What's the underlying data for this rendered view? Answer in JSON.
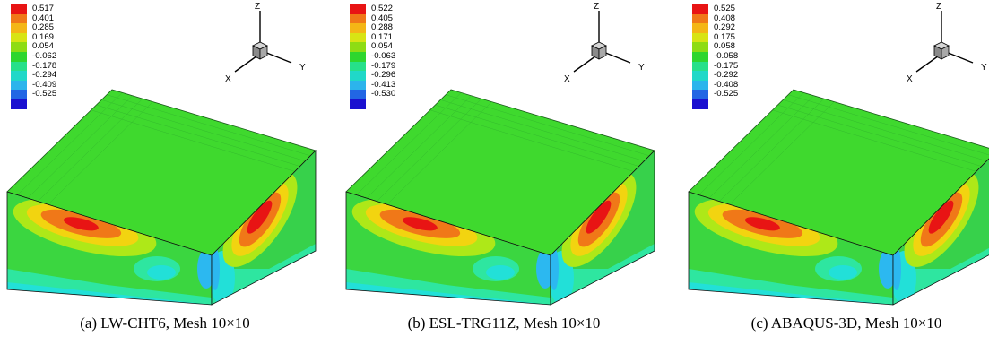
{
  "colors": {
    "top_face": "#3fd92e",
    "front_face": "#3bd640",
    "side_face": "#37d14b",
    "band_cyan_green": "#2ee6a0",
    "band_cyan": "#22e0d8",
    "band_light_blue": "#2cb8f0",
    "band_yellow_green": "#aee818",
    "band_yellow": "#f2d410",
    "band_orange": "#f07818",
    "band_red": "#e81414"
  },
  "legend_colors": [
    "#e81414",
    "#f07818",
    "#f4b616",
    "#d8e414",
    "#8edc14",
    "#2ed62e",
    "#26e08a",
    "#20d8c8",
    "#2cb4ec",
    "#2266e4",
    "#1a10d0"
  ],
  "axis_labels": {
    "z": "Z",
    "x": "X",
    "y": "Y"
  },
  "panels": [
    {
      "id": "a",
      "legend_values": [
        "0.517",
        "0.401",
        "0.285",
        "0.169",
        "0.054",
        "-0.062",
        "-0.178",
        "-0.294",
        "-0.409",
        "-0.525"
      ],
      "caption": "(a)  LW-CHT6, Mesh 10×10"
    },
    {
      "id": "b",
      "legend_values": [
        "0.522",
        "0.405",
        "0.288",
        "0.171",
        "0.054",
        "-0.063",
        "-0.179",
        "-0.296",
        "-0.413",
        "-0.530"
      ],
      "caption": "(b)  ESL-TRG11Z, Mesh 10×10"
    },
    {
      "id": "c",
      "legend_values": [
        "0.525",
        "0.408",
        "0.292",
        "0.175",
        "0.058",
        "-0.058",
        "-0.175",
        "-0.292",
        "-0.408",
        "-0.525"
      ],
      "caption": "(c)  ABAQUS-3D, Mesh 10×10"
    }
  ]
}
